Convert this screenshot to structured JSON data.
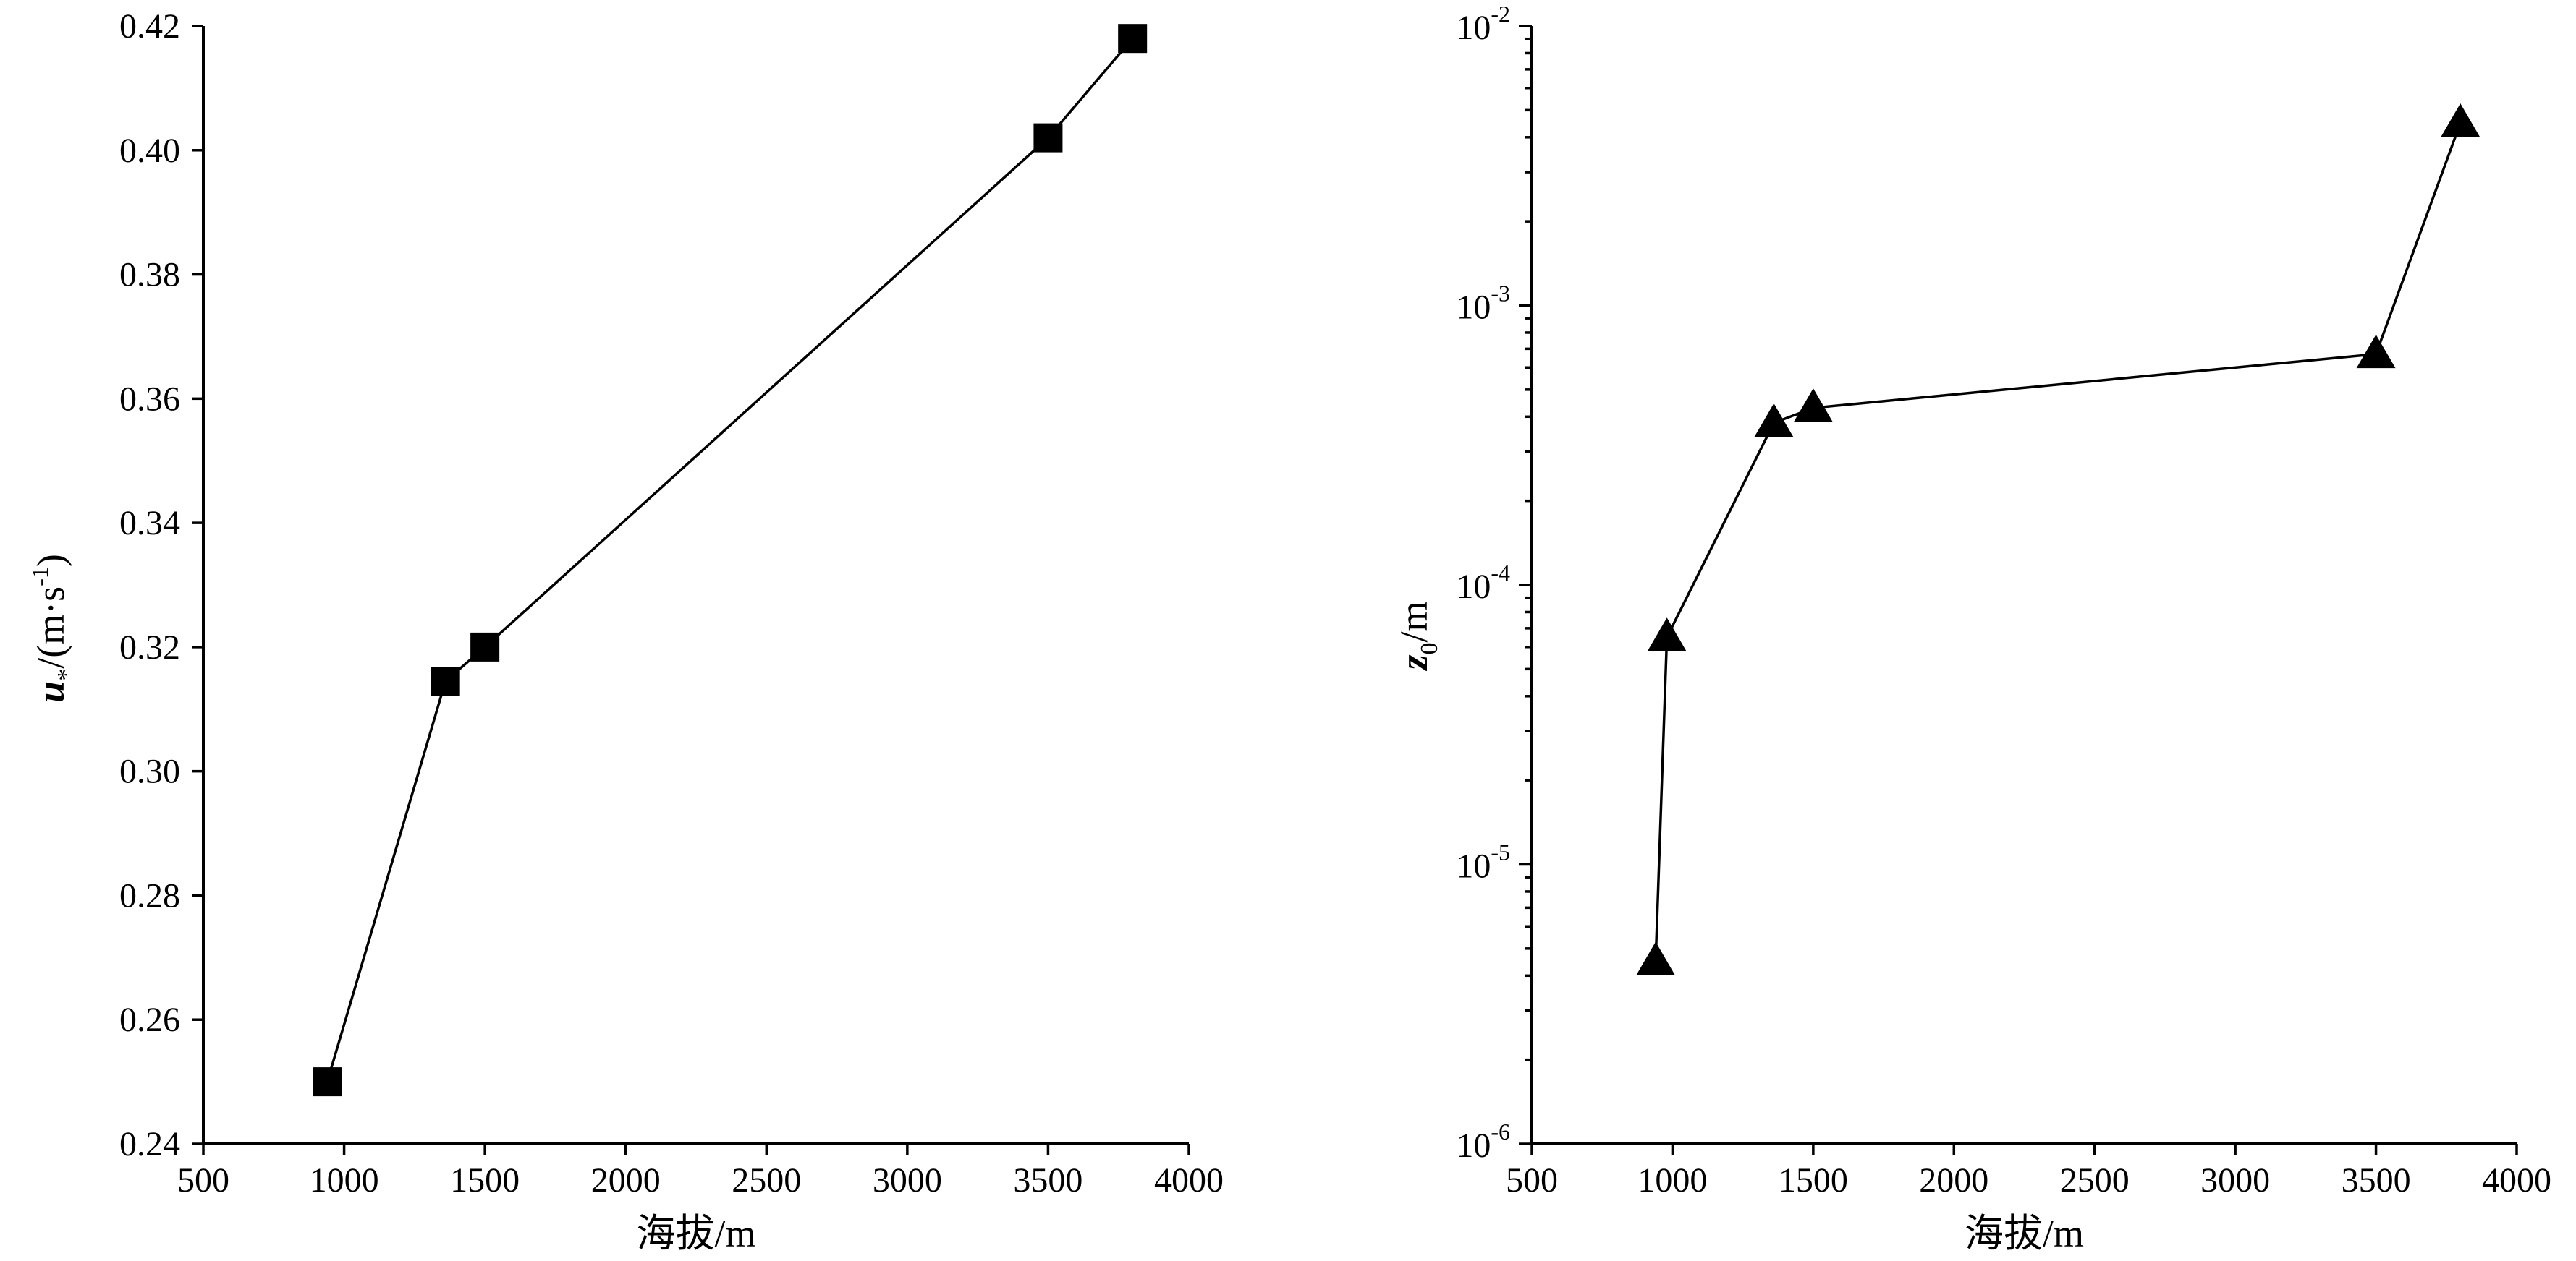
{
  "chart_data": [
    {
      "type": "line",
      "x": [
        940,
        1360,
        1500,
        3500,
        3800
      ],
      "series": [
        {
          "values": [
            0.25,
            0.3145,
            0.32,
            0.402,
            0.418
          ],
          "marker": "square",
          "color": "#000000"
        }
      ],
      "xlabel": "海拔/m",
      "ylabel": {
        "main": "u",
        "sub": "*",
        "unit_open": "/(m·s",
        "unit_exp": "-1",
        "unit_close": ")"
      },
      "xlim": [
        500,
        4000
      ],
      "ylim": [
        0.24,
        0.42
      ],
      "xticks": [
        "500",
        "1000",
        "1500",
        "2000",
        "2500",
        "3000",
        "3500",
        "4000"
      ],
      "yticks": [
        "0.24",
        "0.26",
        "0.28",
        "0.30",
        "0.32",
        "0.34",
        "0.36",
        "0.38",
        "0.40",
        "0.42"
      ],
      "grid": false,
      "legend": "none"
    },
    {
      "type": "line",
      "y_scale": "log",
      "x": [
        940,
        980,
        1360,
        1500,
        3500,
        3800
      ],
      "series": [
        {
          "values": [
            4.5e-06,
            6.5e-05,
            0.00038,
            0.00043,
            0.00067,
            0.0045
          ],
          "marker": "triangle",
          "color": "#000000"
        }
      ],
      "xlabel": "海拔/m",
      "ylabel": {
        "main": "z",
        "sub": "0",
        "unit": "/m"
      },
      "xlim": [
        500,
        4000
      ],
      "ylim": [
        1e-06,
        0.01
      ],
      "xticks": [
        "500",
        "1000",
        "1500",
        "2000",
        "2500",
        "3000",
        "3500",
        "4000"
      ],
      "yticks": [
        {
          "base": "10",
          "exp": "-6"
        },
        {
          "base": "10",
          "exp": "-5"
        },
        {
          "base": "10",
          "exp": "-4"
        },
        {
          "base": "10",
          "exp": "-3"
        },
        {
          "base": "10",
          "exp": "-2"
        }
      ],
      "grid": false,
      "legend": "none"
    }
  ]
}
